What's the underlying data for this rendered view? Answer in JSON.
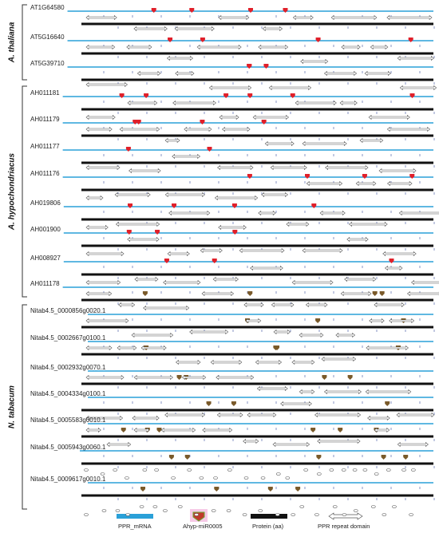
{
  "groups": [
    {
      "label": "A. thaliana",
      "genes": [
        "AT1G64580",
        "AT5G16640",
        "AT5G39710"
      ]
    },
    {
      "label": "A. hypochondriacus",
      "genes": [
        "AH011181",
        "AH011179",
        "AH011177",
        "AH011176",
        "AH019806",
        "AH001900",
        "AH008927",
        "AH011178"
      ]
    },
    {
      "label": "N. tabacum",
      "genes": [
        "Nitab4.5_0000856g0020.1",
        "Nitab4.5_0002667g0100.1",
        "Nitab4.5_0002932g0070.1",
        "Nitab4.5_0004334g0100.1",
        "Nitab4.5_0005583g0010.1",
        "Nitab4.5_0005943g0060.1",
        "Nitab4.5_0009617g0010.1"
      ]
    }
  ],
  "legend": [
    "PPR_mRNA",
    "Ahyp-miR0005",
    "Protein (aa)",
    "PPR repeat domain"
  ]
}
